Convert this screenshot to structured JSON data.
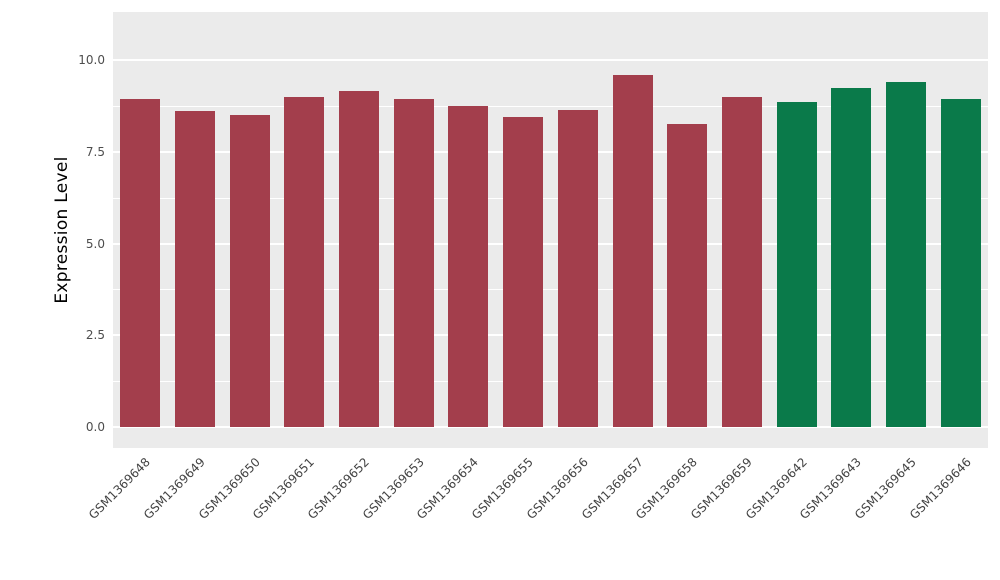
{
  "style": {
    "panel_bg": "#EBEBEB",
    "grid_color": "#FFFFFF",
    "page_bg": "#FFFFFF",
    "axis_text_color": "#4D4D4D",
    "title_text_color": "#000000",
    "group_colors": {
      "first_group": "#A33E4C",
      "second_group": "#0A7A4A"
    }
  },
  "chart_data": {
    "type": "bar",
    "title": "",
    "xlabel": "",
    "ylabel": "Expression Level",
    "ylim": [
      0,
      10
    ],
    "grid": true,
    "legend": "none",
    "yticks": [
      0,
      2.5,
      5,
      7.5,
      10
    ],
    "ytick_labels": [
      "0.0",
      "2.5",
      "5.0",
      "7.5",
      "10.0"
    ],
    "minor_ticks": [
      1.25,
      3.75,
      6.25,
      8.75
    ],
    "categories": [
      "GSM1369648",
      "GSM1369649",
      "GSM1369650",
      "GSM1369651",
      "GSM1369652",
      "GSM1369653",
      "GSM1369654",
      "GSM1369655",
      "GSM1369656",
      "GSM1369657",
      "GSM1369658",
      "GSM1369659",
      "GSM1369642",
      "GSM1369643",
      "GSM1369645",
      "GSM1369646"
    ],
    "values": [
      8.95,
      8.6,
      8.5,
      9.0,
      9.15,
      8.95,
      8.75,
      8.45,
      8.65,
      9.6,
      8.25,
      9.0,
      8.85,
      9.25,
      9.4,
      8.95
    ],
    "colors": [
      "#A33E4C",
      "#A33E4C",
      "#A33E4C",
      "#A33E4C",
      "#A33E4C",
      "#A33E4C",
      "#A33E4C",
      "#A33E4C",
      "#A33E4C",
      "#A33E4C",
      "#A33E4C",
      "#A33E4C",
      "#0A7A4A",
      "#0A7A4A",
      "#0A7A4A",
      "#0A7A4A"
    ]
  }
}
